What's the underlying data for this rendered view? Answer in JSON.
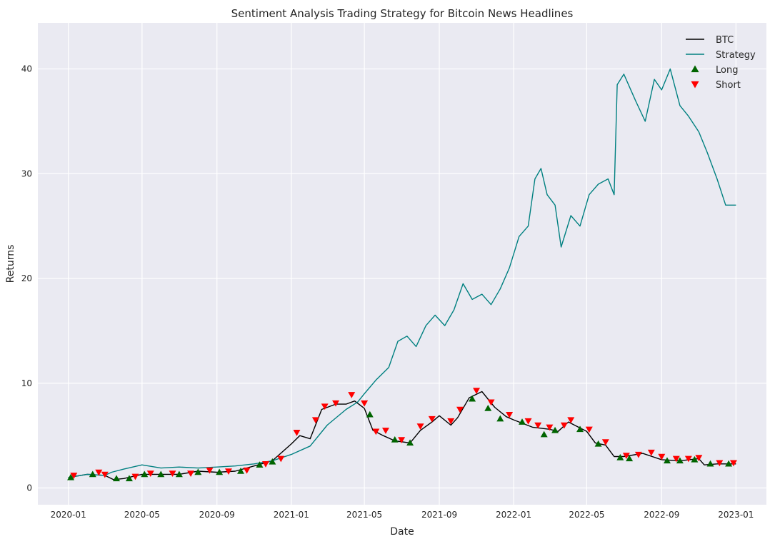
{
  "chart_data": {
    "type": "line",
    "title": "Sentiment Analysis Trading Strategy for Bitcoin News Headlines",
    "xlabel": "Date",
    "ylabel": "Returns",
    "x_ticks": [
      "2020-01",
      "2020-05",
      "2020-09",
      "2021-01",
      "2021-05",
      "2021-09",
      "2022-01",
      "2022-05",
      "2022-09",
      "2023-01"
    ],
    "y_ticks": [
      0,
      10,
      20,
      30,
      40
    ],
    "xlim": [
      "2019-11-12",
      "2023-02-20"
    ],
    "ylim": [
      -1.6,
      44.4
    ],
    "grid": true,
    "legend_position": "top-right",
    "colors": {
      "background": "#eaeaf2",
      "grid": "#ffffff",
      "btc": "#000000",
      "strategy": "#008080",
      "long": "#006400",
      "short": "#ff0000"
    },
    "series": [
      {
        "name": "BTC",
        "type": "line",
        "x": [
          "2020-01-01",
          "2020-02-01",
          "2020-03-01",
          "2020-03-15",
          "2020-04-01",
          "2020-05-01",
          "2020-06-01",
          "2020-07-01",
          "2020-08-01",
          "2020-09-01",
          "2020-10-01",
          "2020-11-01",
          "2020-12-01",
          "2021-01-01",
          "2021-01-15",
          "2021-02-01",
          "2021-02-20",
          "2021-03-15",
          "2021-04-01",
          "2021-04-15",
          "2021-05-01",
          "2021-05-15",
          "2021-06-01",
          "2021-06-20",
          "2021-07-15",
          "2021-08-01",
          "2021-08-20",
          "2021-09-01",
          "2021-09-20",
          "2021-10-01",
          "2021-10-20",
          "2021-11-10",
          "2021-12-01",
          "2021-12-20",
          "2022-01-01",
          "2022-02-01",
          "2022-03-01",
          "2022-03-15",
          "2022-04-01",
          "2022-05-01",
          "2022-05-15",
          "2022-06-01",
          "2022-06-15",
          "2022-07-01",
          "2022-08-01",
          "2022-09-01",
          "2022-10-01",
          "2022-11-01",
          "2022-11-10",
          "2022-12-01",
          "2023-01-01"
        ],
        "values": [
          1.0,
          1.3,
          1.2,
          0.8,
          0.9,
          1.3,
          1.3,
          1.3,
          1.6,
          1.5,
          1.6,
          2.1,
          2.6,
          4.2,
          5.0,
          4.7,
          7.5,
          8.0,
          8.0,
          8.3,
          7.6,
          5.5,
          5.0,
          4.5,
          4.3,
          5.5,
          6.3,
          6.9,
          6.0,
          6.7,
          8.6,
          9.2,
          7.7,
          6.8,
          6.5,
          5.8,
          5.6,
          5.4,
          6.3,
          5.4,
          4.3,
          4.1,
          3.0,
          3.0,
          3.3,
          2.7,
          2.6,
          2.8,
          2.2,
          2.3,
          2.3
        ]
      },
      {
        "name": "Strategy",
        "type": "line",
        "x": [
          "2020-01-01",
          "2020-02-01",
          "2020-03-01",
          "2020-03-12",
          "2020-04-01",
          "2020-05-01",
          "2020-06-01",
          "2020-07-01",
          "2020-08-01",
          "2020-09-01",
          "2020-10-01",
          "2020-11-01",
          "2020-12-01",
          "2021-01-01",
          "2021-02-01",
          "2021-03-01",
          "2021-04-01",
          "2021-04-20",
          "2021-05-01",
          "2021-05-20",
          "2021-06-10",
          "2021-06-25",
          "2021-07-10",
          "2021-07-25",
          "2021-08-10",
          "2021-08-25",
          "2021-09-10",
          "2021-09-25",
          "2021-10-10",
          "2021-10-25",
          "2021-11-10",
          "2021-11-25",
          "2021-12-10",
          "2021-12-25",
          "2022-01-10",
          "2022-01-25",
          "2022-02-05",
          "2022-02-15",
          "2022-02-25",
          "2022-03-10",
          "2022-03-20",
          "2022-04-05",
          "2022-04-20",
          "2022-05-05",
          "2022-05-20",
          "2022-06-05",
          "2022-06-15",
          "2022-06-20",
          "2022-07-01",
          "2022-07-20",
          "2022-08-05",
          "2022-08-20",
          "2022-09-01",
          "2022-09-15",
          "2022-10-01",
          "2022-10-15",
          "2022-11-01",
          "2022-11-15",
          "2022-12-01",
          "2022-12-15",
          "2023-01-01"
        ],
        "values": [
          1.0,
          1.3,
          1.2,
          1.5,
          1.8,
          2.2,
          1.9,
          2.0,
          1.9,
          2.0,
          2.1,
          2.3,
          2.6,
          3.2,
          4.0,
          6.0,
          7.5,
          8.2,
          9.0,
          10.3,
          11.5,
          14.0,
          14.5,
          13.5,
          15.5,
          16.5,
          15.5,
          17.0,
          19.5,
          18.0,
          18.5,
          17.5,
          19.0,
          21.0,
          24.0,
          25.0,
          29.5,
          30.5,
          28.0,
          27.0,
          23.0,
          26.0,
          25.0,
          28.0,
          29.0,
          29.5,
          28.0,
          38.5,
          39.5,
          37.0,
          35.0,
          39.0,
          38.0,
          40.0,
          36.5,
          35.5,
          34.0,
          32.0,
          29.5,
          27.0,
          27.0
        ]
      },
      {
        "name": "Long",
        "type": "scatter",
        "marker": "triangle-up",
        "x": [
          "2020-01-05",
          "2020-02-10",
          "2020-03-20",
          "2020-04-10",
          "2020-05-05",
          "2020-06-01",
          "2020-07-01",
          "2020-08-01",
          "2020-09-05",
          "2020-10-10",
          "2020-11-10",
          "2020-12-01",
          "2021-05-10",
          "2021-06-20",
          "2021-07-15",
          "2021-10-25",
          "2021-11-20",
          "2021-12-10",
          "2022-01-15",
          "2022-02-20",
          "2022-03-10",
          "2022-04-20",
          "2022-05-20",
          "2022-06-25",
          "2022-07-10",
          "2022-09-10",
          "2022-10-01",
          "2022-10-25",
          "2022-11-20",
          "2022-12-20"
        ],
        "values": [
          1.0,
          1.3,
          0.9,
          0.9,
          1.3,
          1.3,
          1.3,
          1.5,
          1.5,
          1.6,
          2.2,
          2.5,
          7.0,
          4.6,
          4.3,
          8.5,
          7.6,
          6.6,
          6.3,
          5.1,
          5.5,
          5.6,
          4.2,
          2.9,
          2.8,
          2.6,
          2.6,
          2.7,
          2.3,
          2.3
        ]
      },
      {
        "name": "Short",
        "type": "scatter",
        "marker": "triangle-down",
        "x": [
          "2020-01-10",
          "2020-02-20",
          "2020-03-01",
          "2020-04-20",
          "2020-05-15",
          "2020-06-20",
          "2020-07-20",
          "2020-08-20",
          "2020-09-20",
          "2020-10-20",
          "2020-11-20",
          "2020-12-15",
          "2021-01-10",
          "2021-02-10",
          "2021-02-25",
          "2021-03-15",
          "2021-04-10",
          "2021-05-01",
          "2021-05-20",
          "2021-06-05",
          "2021-07-01",
          "2021-08-01",
          "2021-08-20",
          "2021-09-20",
          "2021-10-05",
          "2021-11-01",
          "2021-11-25",
          "2021-12-25",
          "2022-01-25",
          "2022-02-10",
          "2022-03-01",
          "2022-03-25",
          "2022-04-05",
          "2022-05-05",
          "2022-06-01",
          "2022-07-05",
          "2022-07-25",
          "2022-08-15",
          "2022-09-01",
          "2022-09-25",
          "2022-10-15",
          "2022-11-01",
          "2022-12-05",
          "2022-12-28"
        ],
        "values": [
          1.2,
          1.5,
          1.3,
          1.1,
          1.4,
          1.4,
          1.4,
          1.7,
          1.6,
          1.7,
          2.3,
          2.8,
          5.3,
          6.5,
          7.8,
          8.1,
          8.9,
          8.1,
          5.4,
          5.5,
          4.6,
          5.9,
          6.6,
          6.4,
          7.5,
          9.3,
          8.2,
          7.0,
          6.4,
          6.0,
          5.8,
          6.0,
          6.5,
          5.6,
          4.4,
          3.1,
          3.2,
          3.4,
          3.0,
          2.8,
          2.8,
          2.9,
          2.4,
          2.4
        ]
      }
    ]
  }
}
